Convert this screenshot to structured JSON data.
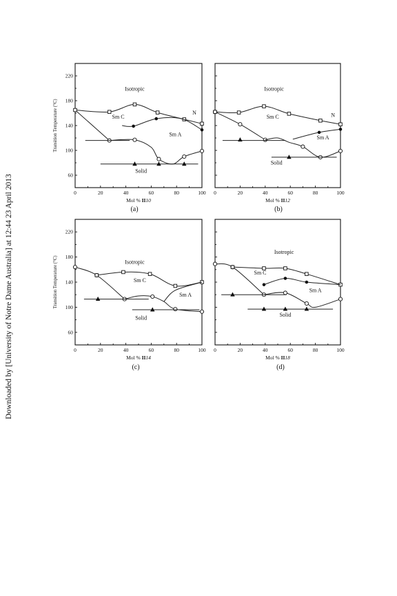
{
  "side_note": "Downloaded by [University of Notre Dame Australia] at 12:44 23 April 2013",
  "y_axis_label": "Transition Temperature (°C)",
  "chart_data": [
    {
      "type": "line",
      "panel_label": "(a)",
      "xlabel_prefix": "Mol % ",
      "xlabel_compound": "II",
      "xlabel_suffix": "10",
      "ylabel": "Transition Temperature (°C)",
      "xlim": [
        0,
        100
      ],
      "ylim": [
        40,
        240
      ],
      "x_ticks": [
        0,
        20,
        40,
        60,
        80,
        100
      ],
      "y_ticks": [
        60,
        100,
        140,
        180,
        220
      ],
      "phase_labels": [
        {
          "text": "Isotropic",
          "x": 47,
          "y": 196
        },
        {
          "text": "Sm C",
          "x": 34,
          "y": 151
        },
        {
          "text": "Sm A",
          "x": 79,
          "y": 123
        },
        {
          "text": "Solid",
          "x": 52,
          "y": 64
        },
        {
          "text": "N",
          "x": 94,
          "y": 158
        }
      ],
      "curves": [
        {
          "points": [
            [
              0,
              165
            ],
            [
              27,
              116
            ]
          ],
          "marker": "none"
        },
        {
          "points": [
            [
              0,
              165
            ],
            [
              27,
              162
            ],
            [
              47,
              174
            ],
            [
              65,
              161
            ],
            [
              86,
              150
            ],
            [
              100,
              143
            ]
          ],
          "marker": "square"
        },
        {
          "points": [
            [
              37,
              140
            ],
            [
              46,
              139
            ],
            [
              64,
              151
            ],
            [
              84,
              151
            ],
            [
              100,
              133
            ]
          ],
          "marker": "circle-filled",
          "marker_at": [
            1,
            2,
            4
          ]
        },
        {
          "points": [
            [
              27,
              116
            ],
            [
              47,
              117
            ],
            [
              60,
              105
            ],
            [
              66,
              86
            ],
            [
              77,
              78
            ],
            [
              86,
              90
            ],
            [
              100,
              99
            ]
          ],
          "marker": "circle-open",
          "marker_at": [
            0,
            1,
            3,
            5,
            6
          ]
        },
        {
          "points": [
            [
              8,
              116
            ],
            [
              43,
              116
            ]
          ],
          "marker": "none"
        },
        {
          "points": [
            [
              20,
              78
            ],
            [
              97,
              78
            ]
          ],
          "marker": "none"
        }
      ],
      "triangles": [
        [
          47,
          78
        ],
        [
          66,
          78
        ],
        [
          86,
          78
        ]
      ]
    },
    {
      "type": "line",
      "panel_label": "(b)",
      "xlabel_prefix": "Mol % ",
      "xlabel_compound": "II",
      "xlabel_suffix": "12",
      "ylabel": "",
      "xlim": [
        0,
        100
      ],
      "ylim": [
        40,
        240
      ],
      "x_ticks": [
        0,
        20,
        40,
        60,
        80,
        100
      ],
      "y_ticks": [],
      "phase_labels": [
        {
          "text": "Isotropic",
          "x": 47,
          "y": 196
        },
        {
          "text": "Sm C",
          "x": 46,
          "y": 151
        },
        {
          "text": "Sm A",
          "x": 86,
          "y": 118
        },
        {
          "text": "Solid",
          "x": 49,
          "y": 77
        },
        {
          "text": "N",
          "x": 94,
          "y": 154
        }
      ],
      "curves": [
        {
          "points": [
            [
              0,
              162
            ],
            [
              20,
              142
            ],
            [
              40,
              117
            ]
          ],
          "marker": "circle-open",
          "marker_at": [
            0,
            1,
            2
          ]
        },
        {
          "points": [
            [
              0,
              162
            ],
            [
              19,
              161
            ],
            [
              39,
              171
            ],
            [
              59,
              159
            ],
            [
              84,
              148
            ],
            [
              100,
              142
            ]
          ],
          "marker": "square"
        },
        {
          "points": [
            [
              62,
              118
            ],
            [
              83,
              129
            ],
            [
              100,
              134
            ]
          ],
          "marker": "circle-filled",
          "marker_at": [
            1,
            2
          ]
        },
        {
          "points": [
            [
              40,
              117
            ],
            [
              50,
              120
            ],
            [
              59,
              113
            ],
            [
              70,
              106
            ],
            [
              84,
              89
            ],
            [
              100,
              99
            ]
          ],
          "marker": "circle-open",
          "marker_at": [
            3,
            4,
            5
          ]
        },
        {
          "points": [
            [
              6,
              116
            ],
            [
              56,
              116
            ]
          ],
          "marker": "none"
        },
        {
          "points": [
            [
              45,
              89
            ],
            [
              97,
              89
            ]
          ],
          "marker": "none"
        }
      ],
      "triangles": [
        [
          20,
          117
        ],
        [
          59,
          89
        ]
      ]
    },
    {
      "type": "line",
      "panel_label": "(c)",
      "xlabel_prefix": "Mol % ",
      "xlabel_compound": "II",
      "xlabel_suffix": "14",
      "ylabel": "Transition Temperature (°C)",
      "xlim": [
        0,
        100
      ],
      "ylim": [
        40,
        240
      ],
      "x_ticks": [
        0,
        20,
        40,
        60,
        80,
        100
      ],
      "y_ticks": [
        60,
        100,
        140,
        180,
        220
      ],
      "phase_labels": [
        {
          "text": "Isotropic",
          "x": 47,
          "y": 169
        },
        {
          "text": "Sm C",
          "x": 51,
          "y": 140
        },
        {
          "text": "Sm A",
          "x": 87,
          "y": 117
        },
        {
          "text": "Solid",
          "x": 52,
          "y": 80
        }
      ],
      "curves": [
        {
          "points": [
            [
              0,
              164
            ],
            [
              17,
              151
            ],
            [
              39,
              113
            ]
          ],
          "marker": "circle-open",
          "marker_at": [
            0,
            1,
            2
          ]
        },
        {
          "points": [
            [
              17,
              151
            ],
            [
              38,
              156
            ],
            [
              59,
              153
            ],
            [
              79,
              134
            ],
            [
              100,
              140
            ]
          ],
          "marker": "square"
        },
        {
          "points": [
            [
              39,
              113
            ],
            [
              50,
              118
            ],
            [
              61,
              117
            ],
            [
              70,
              109
            ],
            [
              79,
              97
            ],
            [
              100,
              93
            ]
          ],
          "marker": "circle-open",
          "marker_at": [
            2,
            4,
            5
          ]
        },
        {
          "points": [
            [
              70,
              109
            ],
            [
              79,
              127
            ],
            [
              100,
              140
            ]
          ],
          "marker": "none"
        },
        {
          "points": [
            [
              7,
              113
            ],
            [
              58,
              113
            ]
          ],
          "marker": "none"
        },
        {
          "points": [
            [
              45,
              96
            ],
            [
              98,
              96
            ]
          ],
          "marker": "none"
        }
      ],
      "triangles": [
        [
          18,
          113
        ],
        [
          61,
          96
        ]
      ]
    },
    {
      "type": "line",
      "panel_label": "(d)",
      "xlabel_prefix": "Mol % ",
      "xlabel_compound": "II",
      "xlabel_suffix": "18",
      "ylabel": "",
      "xlim": [
        0,
        100
      ],
      "ylim": [
        40,
        240
      ],
      "x_ticks": [
        0,
        20,
        40,
        60,
        80,
        100
      ],
      "y_ticks": [],
      "phase_labels": [
        {
          "text": "Isotropic",
          "x": 55,
          "y": 185
        },
        {
          "text": "Sm C",
          "x": 36,
          "y": 152
        },
        {
          "text": "Sm A",
          "x": 80,
          "y": 124
        },
        {
          "text": "Solid",
          "x": 56,
          "y": 85
        }
      ],
      "curves": [
        {
          "points": [
            [
              0,
              169
            ],
            [
              14,
              164
            ],
            [
              39,
              120
            ]
          ],
          "marker": "circle-open",
          "marker_at": [
            0,
            1,
            2
          ]
        },
        {
          "points": [
            [
              14,
              164
            ],
            [
              39,
              162
            ],
            [
              56,
              162
            ],
            [
              73,
              153
            ],
            [
              100,
              136
            ]
          ],
          "marker": "square"
        },
        {
          "points": [
            [
              39,
              136
            ],
            [
              56,
              146
            ],
            [
              73,
              140
            ],
            [
              100,
              136
            ]
          ],
          "marker": "circle-filled",
          "marker_at": [
            0,
            1,
            2
          ]
        },
        {
          "points": [
            [
              39,
              120
            ],
            [
              56,
              123
            ],
            [
              73,
              106
            ],
            [
              80,
              100
            ],
            [
              100,
              113
            ]
          ],
          "marker": "circle-open",
          "marker_at": [
            1,
            2,
            4
          ]
        },
        {
          "points": [
            [
              5,
              120
            ],
            [
              57,
              120
            ]
          ],
          "marker": "none"
        },
        {
          "points": [
            [
              26,
              97
            ],
            [
              94,
              97
            ]
          ],
          "marker": "none"
        }
      ],
      "triangles": [
        [
          14,
          120
        ],
        [
          39,
          97
        ],
        [
          56,
          97
        ],
        [
          73,
          97
        ]
      ]
    }
  ]
}
